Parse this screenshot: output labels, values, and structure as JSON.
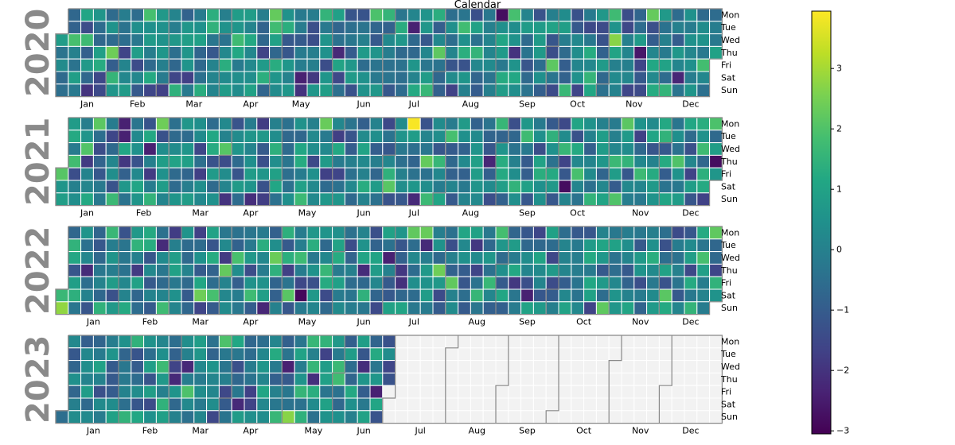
{
  "chart_data": {
    "type": "heatmap",
    "title": "Calendar",
    "colormap": "viridis",
    "colorbar": {
      "min": -3.05,
      "max": 3.95,
      "ticks": [
        -3,
        -2,
        -1,
        0,
        1,
        2,
        3
      ],
      "tick_labels": [
        "−3",
        "−2",
        "−1",
        "0",
        "1",
        "2",
        "3"
      ]
    },
    "day_labels": [
      "Mon",
      "Tue",
      "Wed",
      "Thu",
      "Fri",
      "Sat",
      "Sun"
    ],
    "month_labels": [
      "Jan",
      "Feb",
      "Mar",
      "Apr",
      "May",
      "Jun",
      "Jul",
      "Aug",
      "Sep",
      "Oct",
      "Nov",
      "Dec"
    ],
    "data_start": "2020-01-01",
    "data_end": "2023-06-29",
    "missing_color": "#f2f2f2",
    "highlights": [
      {
        "date": "2021-07-12",
        "value": 3.9
      },
      {
        "date": "2021-12-30",
        "value": -2.8
      },
      {
        "date": "2022-01-02",
        "value": 2.8
      },
      {
        "date": "2022-05-14",
        "value": -2.9
      },
      {
        "date": "2020-08-31",
        "value": -2.8
      },
      {
        "date": "2020-11-04",
        "value": 2.7
      },
      {
        "date": "2023-05-07",
        "value": 2.7
      },
      {
        "date": "2020-11-19",
        "value": -2.6
      },
      {
        "date": "2021-10-09",
        "value": -2.8
      }
    ],
    "years": [
      {
        "year": "2020"
      },
      {
        "year": "2021"
      },
      {
        "year": "2022"
      },
      {
        "year": "2023"
      }
    ]
  }
}
